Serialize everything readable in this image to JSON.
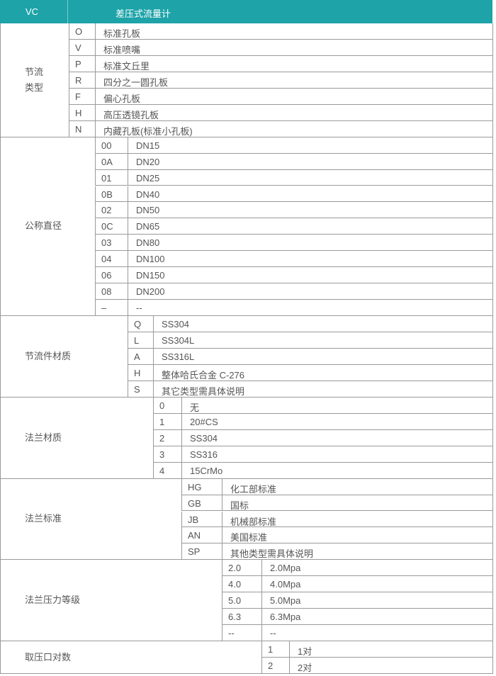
{
  "header": {
    "code": "VC",
    "title": "差压式流量计",
    "color": "#1da3a8"
  },
  "sections": [
    {
      "label": [
        "节流",
        "类型"
      ],
      "rows": [
        [
          "O",
          "标准孔板"
        ],
        [
          "V",
          "标准喷嘴"
        ],
        [
          "P",
          "标准文丘里"
        ],
        [
          "R",
          "四分之一圆孔板"
        ],
        [
          "F",
          "偏心孔板"
        ],
        [
          "H",
          "高压透镜孔板"
        ],
        [
          "N",
          "内藏孔板(标准小孔板)"
        ]
      ]
    },
    {
      "label": [
        "公称直径"
      ],
      "rows": [
        [
          "00",
          "DN15"
        ],
        [
          "0A",
          "DN20"
        ],
        [
          "01",
          "DN25"
        ],
        [
          "0B",
          "DN40"
        ],
        [
          "02",
          "DN50"
        ],
        [
          "0C",
          "DN65"
        ],
        [
          "03",
          "DN80"
        ],
        [
          "04",
          "DN100"
        ],
        [
          "06",
          "DN150"
        ],
        [
          "08",
          "DN200"
        ],
        [
          "–",
          "--"
        ]
      ]
    },
    {
      "label": [
        "节流件材质"
      ],
      "rows": [
        [
          "Q",
          "SS304"
        ],
        [
          "L",
          "SS304L"
        ],
        [
          "A",
          "SS316L"
        ],
        [
          "H",
          "整体哈氏合金 C-276"
        ],
        [
          "S",
          "其它类型需具体说明"
        ]
      ]
    },
    {
      "label": [
        "法兰材质"
      ],
      "rows": [
        [
          "0",
          "无"
        ],
        [
          "1",
          "20#CS"
        ],
        [
          "2",
          "SS304"
        ],
        [
          "3",
          "SS316"
        ],
        [
          "4",
          "15CrMo"
        ]
      ]
    },
    {
      "label": [
        "法兰标准"
      ],
      "rows": [
        [
          "HG",
          "化工部标准"
        ],
        [
          "GB",
          "国标"
        ],
        [
          "JB",
          "机械部标准"
        ],
        [
          "AN",
          "美国标准"
        ],
        [
          "SP",
          "其他类型需具体说明"
        ]
      ]
    },
    {
      "label": [
        "法兰压力等级"
      ],
      "rows": [
        [
          "2.0",
          "2.0Mpa"
        ],
        [
          "4.0",
          "4.0Mpa"
        ],
        [
          "5.0",
          "5.0Mpa"
        ],
        [
          "6.3",
          "6.3Mpa"
        ],
        [
          "--",
          "--"
        ]
      ]
    },
    {
      "label": [
        "取压口对数"
      ],
      "rows": [
        [
          "1",
          "1对"
        ],
        [
          "2",
          "2对"
        ]
      ]
    }
  ]
}
